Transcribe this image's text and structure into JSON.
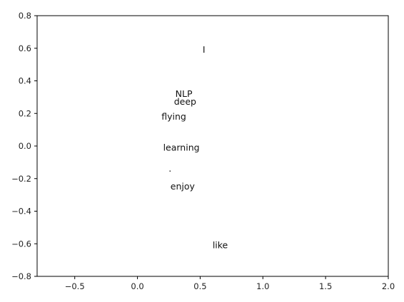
{
  "chart_data": {
    "type": "scatter",
    "title": "",
    "xlabel": "",
    "ylabel": "",
    "xlim": [
      -0.8,
      2.0
    ],
    "ylim": [
      -0.8,
      0.8
    ],
    "x_ticks": [
      -0.5,
      0.0,
      0.5,
      1.0,
      1.5,
      2.0
    ],
    "x_tick_labels": [
      "−0.5",
      "0.0",
      "0.5",
      "1.0",
      "1.5",
      "2.0"
    ],
    "y_ticks": [
      -0.8,
      -0.6,
      -0.4,
      -0.2,
      0.0,
      0.2,
      0.4,
      0.6,
      0.8
    ],
    "y_tick_labels": [
      "−0.8",
      "−0.6",
      "−0.4",
      "−0.2",
      "0.0",
      "0.2",
      "0.4",
      "0.6",
      "0.8"
    ],
    "grid": false,
    "points": [
      {
        "label": "I",
        "x": 0.53,
        "y": 0.59
      },
      {
        "label": "NLP",
        "x": 0.37,
        "y": 0.32
      },
      {
        "label": "deep",
        "x": 0.38,
        "y": 0.27
      },
      {
        "label": "flying",
        "x": 0.29,
        "y": 0.18
      },
      {
        "label": "learning",
        "x": 0.35,
        "y": -0.01
      },
      {
        "label": ".",
        "x": 0.26,
        "y": -0.14
      },
      {
        "label": "enjoy",
        "x": 0.36,
        "y": -0.25
      },
      {
        "label": "like",
        "x": 0.66,
        "y": -0.61
      }
    ]
  }
}
